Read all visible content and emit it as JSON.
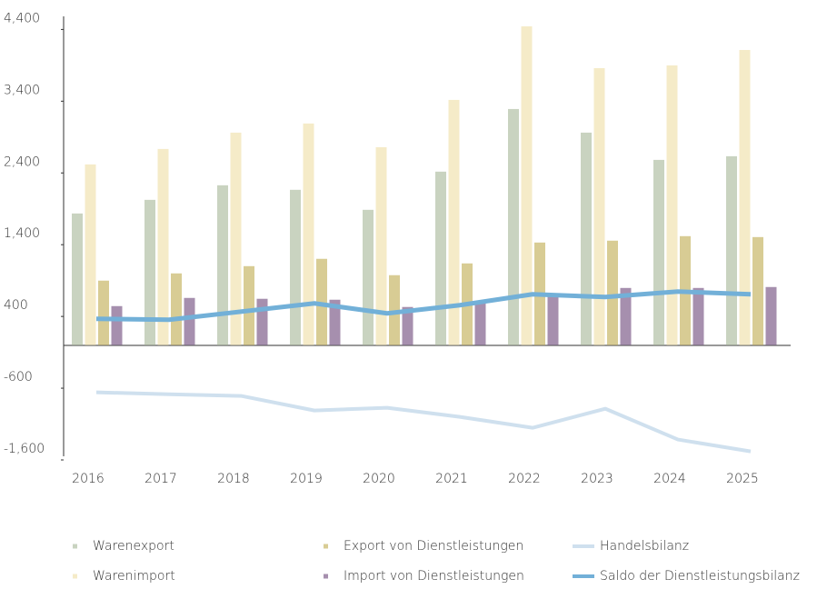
{
  "chart_data": {
    "type": "bar",
    "categories": [
      "2016",
      "2017",
      "2018",
      "2019",
      "2020",
      "2021",
      "2022",
      "2023",
      "2024",
      "2025"
    ],
    "series": [
      {
        "name": "Warenexport",
        "color": "#c9d3c0",
        "kind": "bar",
        "values": [
          1835,
          2025,
          2228,
          2165,
          1886,
          2418,
          3291,
          2962,
          2582,
          2633
        ]
      },
      {
        "name": "Warenimport",
        "color": "#f5ebc8",
        "kind": "bar",
        "values": [
          2519,
          2734,
          2962,
          3089,
          2759,
          3418,
          4443,
          3861,
          3899,
          4114
        ]
      },
      {
        "name": "Export von Dienstleistungen",
        "color": "#d8cc94",
        "kind": "bar",
        "values": [
          899,
          1000,
          1101,
          1203,
          975,
          1139,
          1430,
          1456,
          1519,
          1506
        ]
      },
      {
        "name": "Import von Dienstleistungen",
        "color": "#a68fae",
        "kind": "bar",
        "values": [
          544,
          658,
          646,
          633,
          532,
          595,
          722,
          797,
          797,
          810
        ]
      },
      {
        "name": "Handelsbilanz",
        "color": "#cfe0ee",
        "kind": "line",
        "values": [
          -658,
          -684,
          -709,
          -911,
          -873,
          -1000,
          -1152,
          -886,
          -1316,
          -1481
        ]
      },
      {
        "name": "Saldo der Dienstleistungsbilanz",
        "color": "#72b0d8",
        "kind": "line",
        "values": [
          367,
          354,
          468,
          582,
          443,
          557,
          709,
          671,
          747,
          709
        ]
      }
    ],
    "ylim": [
      -1600,
      4400
    ],
    "yticks": [
      {
        "value": 4400,
        "label": "4,400"
      },
      {
        "value": 3400,
        "label": "3,400"
      },
      {
        "value": 2400,
        "label": "2,400"
      },
      {
        "value": 1400,
        "label": "1,400"
      },
      400,
      -600,
      {
        "value": -1600,
        "label": "-1,600"
      }
    ]
  }
}
